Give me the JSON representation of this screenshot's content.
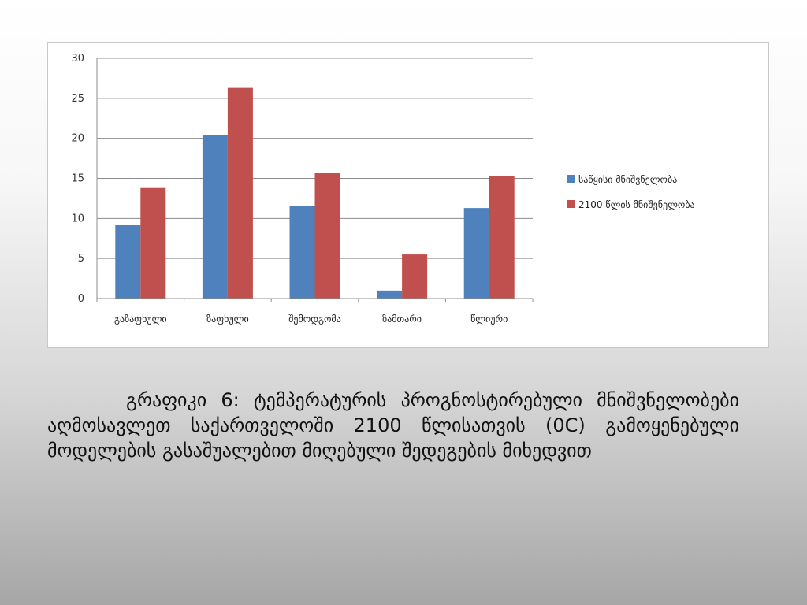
{
  "colors": {
    "series_1": "#4F81BD",
    "series_2": "#C0504D",
    "gridline": "#8c8c8c"
  },
  "chart_data": {
    "type": "bar",
    "categories": [
      "გაზაფხული",
      "ზაფხული",
      "შემოდგომა",
      "ზამთარი",
      "წლიური"
    ],
    "series": [
      {
        "name": "საწყისი მნიშვნელობა",
        "values": [
          9.2,
          20.4,
          11.6,
          1.0,
          11.3
        ]
      },
      {
        "name": "2100 წლის მნიშვნელობა",
        "values": [
          13.8,
          26.3,
          15.7,
          5.5,
          15.3
        ]
      }
    ],
    "ylim": [
      0,
      30
    ],
    "yticks": [
      0,
      5,
      10,
      15,
      20,
      25,
      30
    ],
    "grid": true,
    "legend": "right"
  },
  "caption": "გრაფიკი 6: ტემპერატურის პროგნოსტირებული მნიშვნელობები აღმოსავლეთ საქართველოში 2100 წლისათვის (0C) გამოყენებული მოდელების გასაშუალებით მიღებული შედეგების მიხედვით"
}
